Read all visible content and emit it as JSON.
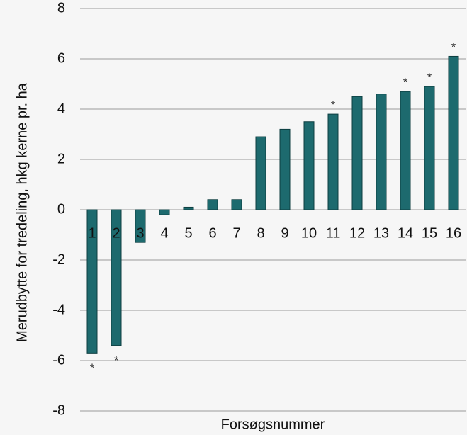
{
  "chart_data": {
    "type": "bar",
    "y_label": "Merudbytte for tredeling, hkg kerne pr. ha",
    "x_label": "Forsøgsnummer",
    "categories": [
      "1",
      "2",
      "3",
      "4",
      "5",
      "6",
      "7",
      "8",
      "9",
      "10",
      "11",
      "12",
      "13",
      "14",
      "15",
      "16"
    ],
    "values": [
      -5.7,
      -5.4,
      -1.3,
      -0.2,
      0.1,
      0.4,
      0.4,
      2.9,
      3.2,
      3.5,
      3.8,
      4.5,
      4.6,
      4.7,
      4.9,
      6.1
    ],
    "marks": [
      "*",
      "*",
      null,
      null,
      null,
      null,
      null,
      null,
      null,
      null,
      "*",
      null,
      null,
      "*",
      "*",
      "*"
    ],
    "color": "#1d6a6e",
    "ylim": [
      -8,
      8
    ],
    "yticks": [
      -8,
      -6,
      -4,
      -2,
      0,
      2,
      4,
      6,
      8
    ],
    "grid": true
  }
}
